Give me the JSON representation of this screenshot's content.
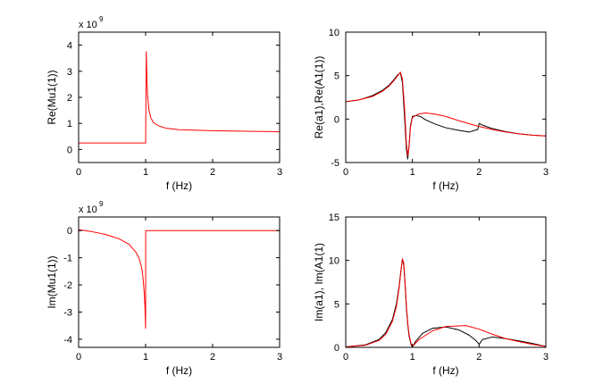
{
  "figure": {
    "background": "#ffffff",
    "axis_color": "#000000"
  },
  "chart_data": [
    {
      "id": "re-mu",
      "type": "line",
      "title": "",
      "xlabel": "f (Hz)",
      "ylabel": "Re(Mu1(1))",
      "xlim": [
        0,
        3
      ],
      "ylim": [
        -0.5,
        4.5
      ],
      "xticks": [
        0,
        1,
        2,
        3
      ],
      "xtick_labels": [
        "0",
        "1",
        "2",
        "3"
      ],
      "yticks": [
        0,
        1,
        2,
        3,
        4
      ],
      "ytick_labels": [
        "0",
        "1",
        "2",
        "3",
        "4"
      ],
      "sci_multiplier": "x 10",
      "sci_exponent": "9",
      "series": [
        {
          "name": "Re(Mu1(1))",
          "color": "#ff0000",
          "x": [
            0,
            0.999,
            1.0,
            1.01,
            1.02,
            1.03,
            1.05,
            1.08,
            1.12,
            1.2,
            1.3,
            1.5,
            2.0,
            2.5,
            3.0
          ],
          "y": [
            0.25,
            0.25,
            0.25,
            3.75,
            2.7,
            2.05,
            1.5,
            1.2,
            1.02,
            0.9,
            0.82,
            0.76,
            0.72,
            0.7,
            0.68
          ]
        }
      ]
    },
    {
      "id": "re-a",
      "type": "line",
      "title": "",
      "xlabel": "f (Hz)",
      "ylabel": "Re(a1),Re(A1(1))",
      "xlim": [
        0,
        3
      ],
      "ylim": [
        -5,
        10
      ],
      "xticks": [
        0,
        1,
        2,
        3
      ],
      "xtick_labels": [
        "0",
        "1",
        "2",
        "3"
      ],
      "yticks": [
        -5,
        0,
        5,
        10
      ],
      "ytick_labels": [
        "-5",
        "0",
        "5",
        "10"
      ],
      "series": [
        {
          "name": "Re(a1)",
          "color": "#000000",
          "x": [
            0,
            0.2,
            0.4,
            0.55,
            0.65,
            0.72,
            0.78,
            0.82,
            0.85,
            0.88,
            0.91,
            0.93,
            0.95,
            0.97,
            1.0,
            1.05,
            1.12,
            1.2,
            1.35,
            1.5,
            1.7,
            1.85,
            1.98,
            2.0,
            2.05,
            2.2,
            2.4,
            2.6,
            2.8,
            3.0
          ],
          "y": [
            2.0,
            2.2,
            2.7,
            3.3,
            3.9,
            4.5,
            5.1,
            5.3,
            4.2,
            0.5,
            -3.5,
            -4.6,
            -3.0,
            -0.8,
            0.3,
            0.4,
            0.3,
            -0.1,
            -0.6,
            -1.0,
            -1.3,
            -1.5,
            -1.2,
            -0.5,
            -0.7,
            -1.1,
            -1.45,
            -1.7,
            -1.85,
            -1.95
          ]
        },
        {
          "name": "Re(A1(1))",
          "color": "#ff0000",
          "x": [
            0,
            0.2,
            0.4,
            0.55,
            0.65,
            0.72,
            0.78,
            0.82,
            0.85,
            0.88,
            0.91,
            0.93,
            0.95,
            0.97,
            1.0,
            1.1,
            1.2,
            1.35,
            1.5,
            1.7,
            1.9,
            2.0,
            2.2,
            2.4,
            2.6,
            2.8,
            3.0
          ],
          "y": [
            2.0,
            2.2,
            2.6,
            3.2,
            3.8,
            4.4,
            5.0,
            5.4,
            4.6,
            1.5,
            -2.8,
            -4.2,
            -3.2,
            -1.0,
            0.2,
            0.6,
            0.7,
            0.55,
            0.3,
            -0.2,
            -0.65,
            -0.85,
            -1.2,
            -1.5,
            -1.7,
            -1.85,
            -1.95
          ]
        }
      ]
    },
    {
      "id": "im-mu",
      "type": "line",
      "title": "",
      "xlabel": "f (Hz)",
      "ylabel": "Im(Mu1(1))",
      "xlim": [
        0,
        3
      ],
      "ylim": [
        -4.3,
        0.5
      ],
      "xticks": [
        0,
        1,
        2,
        3
      ],
      "xtick_labels": [
        "0",
        "1",
        "2",
        "3"
      ],
      "yticks": [
        -4,
        -3,
        -2,
        -1,
        0
      ],
      "ytick_labels": [
        "-4",
        "-3",
        "-2",
        "-1",
        "0"
      ],
      "sci_multiplier": "x 10",
      "sci_exponent": "9",
      "series": [
        {
          "name": "Im(Mu1(1))",
          "color": "#ff0000",
          "x": [
            0,
            0.2,
            0.4,
            0.6,
            0.75,
            0.85,
            0.9,
            0.94,
            0.96,
            0.98,
            0.99,
            0.995,
            1.0,
            1.001,
            1.5,
            2.0,
            2.5,
            3.0
          ],
          "y": [
            0.03,
            -0.04,
            -0.14,
            -0.3,
            -0.5,
            -0.78,
            -1.0,
            -1.35,
            -1.7,
            -2.3,
            -2.8,
            -3.2,
            -3.6,
            0.0,
            0.0,
            0.0,
            0.0,
            0.0
          ]
        }
      ]
    },
    {
      "id": "im-a",
      "type": "line",
      "title": "",
      "xlabel": "f (Hz)",
      "ylabel": "Im(a1), Im(A1(1)",
      "xlim": [
        0,
        3
      ],
      "ylim": [
        0,
        15
      ],
      "xticks": [
        0,
        1,
        2,
        3
      ],
      "xtick_labels": [
        "0",
        "1",
        "2",
        "3"
      ],
      "yticks": [
        0,
        5,
        10,
        15
      ],
      "ytick_labels": [
        "0",
        "5",
        "10",
        "15"
      ],
      "series": [
        {
          "name": "Im(a1)",
          "color": "#000000",
          "x": [
            0,
            0.3,
            0.5,
            0.6,
            0.7,
            0.76,
            0.8,
            0.83,
            0.85,
            0.87,
            0.89,
            0.91,
            0.93,
            0.95,
            0.98,
            1.0,
            1.05,
            1.15,
            1.3,
            1.5,
            1.7,
            1.85,
            1.95,
            2.0,
            2.05,
            2.2,
            2.4,
            2.6,
            2.8,
            3.0
          ],
          "y": [
            0.05,
            0.3,
            0.9,
            1.7,
            3.2,
            5.0,
            7.0,
            9.0,
            10.1,
            9.5,
            7.2,
            4.5,
            2.6,
            1.3,
            0.3,
            0.05,
            0.7,
            1.6,
            2.2,
            2.35,
            2.0,
            1.4,
            0.8,
            0.35,
            0.9,
            1.2,
            1.0,
            0.75,
            0.45,
            0.1
          ]
        },
        {
          "name": "Im(A1(1))",
          "color": "#ff0000",
          "x": [
            0,
            0.3,
            0.5,
            0.6,
            0.7,
            0.76,
            0.8,
            0.83,
            0.85,
            0.87,
            0.89,
            0.91,
            0.93,
            0.95,
            0.98,
            1.0,
            1.1,
            1.3,
            1.5,
            1.8,
            2.0,
            2.2,
            2.4,
            2.6,
            2.8,
            3.0
          ],
          "y": [
            0.05,
            0.25,
            0.8,
            1.5,
            3.0,
            4.7,
            6.8,
            8.9,
            10.2,
            9.7,
            7.5,
            4.8,
            2.8,
            1.5,
            0.4,
            0.1,
            0.9,
            1.9,
            2.4,
            2.5,
            2.1,
            1.5,
            1.0,
            0.65,
            0.35,
            0.1
          ]
        }
      ]
    }
  ]
}
